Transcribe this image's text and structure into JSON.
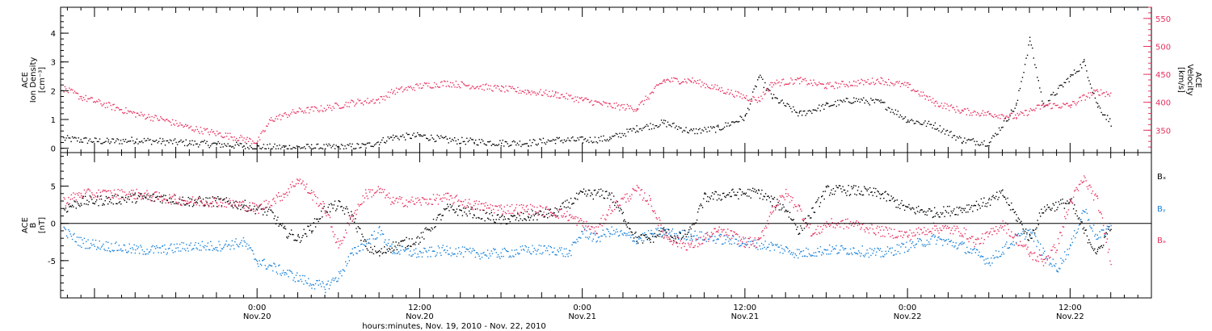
{
  "chart_data": [
    {
      "type": "scatter",
      "x_axis": {
        "label": "hours:minutes, Nov. 19, 2010 - Nov. 22, 2010",
        "range_hours": [
          -14.5,
          66
        ],
        "ticks": [
          {
            "hours": 0,
            "time": "0:00",
            "date": "Nov.20"
          },
          {
            "hours": 12,
            "time": "12:00",
            "date": "Nov.20"
          },
          {
            "hours": 24,
            "time": "0:00",
            "date": "Nov.21"
          },
          {
            "hours": 36,
            "time": "12:00",
            "date": "Nov.21"
          },
          {
            "hours": 48,
            "time": "0:00",
            "date": "Nov.22"
          },
          {
            "hours": 60,
            "time": "12:00",
            "date": "Nov.22"
          }
        ]
      },
      "left_axis": {
        "label_lines": [
          "ACE",
          "Ion Density",
          "[cm⁻³]"
        ],
        "ylim": [
          -0.15,
          4.9
        ],
        "ticks": [
          0,
          1,
          2,
          3,
          4
        ],
        "color": "#000000"
      },
      "right_axis": {
        "label_lines": [
          "ACE",
          "Velocity",
          "[km/s]"
        ],
        "ylim": [
          310,
          570
        ],
        "ticks": [
          350,
          400,
          450,
          500,
          550
        ],
        "color": "#e8305f"
      },
      "series": [
        {
          "axis": "left",
          "color": "#000000",
          "points": [
            [
              -14.3,
              0.35
            ],
            [
              -13,
              0.3
            ],
            [
              -11,
              0.25
            ],
            [
              -9,
              0.3
            ],
            [
              -7,
              0.25
            ],
            [
              -5,
              0.2
            ],
            [
              -3,
              0.15
            ],
            [
              -1,
              0.1
            ],
            [
              0,
              0.05
            ],
            [
              2,
              0.05
            ],
            [
              4,
              0.05
            ],
            [
              6,
              0.05
            ],
            [
              8,
              0.1
            ],
            [
              10,
              0.4
            ],
            [
              12,
              0.45
            ],
            [
              14,
              0.3
            ],
            [
              16,
              0.25
            ],
            [
              18,
              0.2
            ],
            [
              20,
              0.2
            ],
            [
              22,
              0.3
            ],
            [
              24,
              0.3
            ],
            [
              26,
              0.35
            ],
            [
              28,
              0.7
            ],
            [
              30,
              0.9
            ],
            [
              32,
              0.6
            ],
            [
              34,
              0.7
            ],
            [
              36,
              1.1
            ],
            [
              37,
              2.5
            ],
            [
              38,
              1.8
            ],
            [
              40,
              1.2
            ],
            [
              42,
              1.5
            ],
            [
              44,
              1.7
            ],
            [
              46,
              1.6
            ],
            [
              48,
              1.0
            ],
            [
              50,
              0.8
            ],
            [
              52,
              0.3
            ],
            [
              54,
              0.2
            ],
            [
              56,
              1.5
            ],
            [
              57,
              3.8
            ],
            [
              58,
              1.5
            ],
            [
              60,
              2.5
            ],
            [
              61,
              3.0
            ],
            [
              62,
              1.5
            ],
            [
              63,
              0.9
            ]
          ]
        },
        {
          "axis": "right",
          "color": "#e8305f",
          "points": [
            [
              -14.3,
              425
            ],
            [
              -13,
              410
            ],
            [
              -11,
              395
            ],
            [
              -9,
              380
            ],
            [
              -7,
              370
            ],
            [
              -5,
              355
            ],
            [
              -3,
              345
            ],
            [
              -1,
              335
            ],
            [
              0,
              330
            ],
            [
              1,
              370
            ],
            [
              3,
              385
            ],
            [
              5,
              390
            ],
            [
              7,
              400
            ],
            [
              9,
              405
            ],
            [
              10,
              420
            ],
            [
              12,
              430
            ],
            [
              14,
              435
            ],
            [
              16,
              430
            ],
            [
              18,
              425
            ],
            [
              20,
              420
            ],
            [
              22,
              415
            ],
            [
              24,
              405
            ],
            [
              26,
              395
            ],
            [
              28,
              390
            ],
            [
              30,
              440
            ],
            [
              32,
              440
            ],
            [
              34,
              425
            ],
            [
              36,
              410
            ],
            [
              37,
              405
            ],
            [
              38,
              435
            ],
            [
              40,
              440
            ],
            [
              42,
              430
            ],
            [
              44,
              435
            ],
            [
              46,
              440
            ],
            [
              48,
              430
            ],
            [
              50,
              400
            ],
            [
              52,
              385
            ],
            [
              54,
              380
            ],
            [
              56,
              375
            ],
            [
              58,
              395
            ],
            [
              60,
              395
            ],
            [
              61,
              410
            ],
            [
              62,
              420
            ],
            [
              63,
              415
            ]
          ]
        }
      ]
    },
    {
      "type": "scatter",
      "y_axis": {
        "label_lines": [
          "ACE",
          "B",
          "[nT]"
        ],
        "ylim": [
          -10,
          9.5
        ],
        "ticks": [
          -5,
          0,
          5
        ],
        "zero_line": true
      },
      "legend": [
        "Bₓ",
        "Bᵧ",
        "Bₔ"
      ],
      "series": [
        {
          "name": "Bx",
          "color": "#000000",
          "points": [
            [
              -14.3,
              2
            ],
            [
              -13,
              3
            ],
            [
              -11,
              3.2
            ],
            [
              -9,
              3.5
            ],
            [
              -7,
              3.5
            ],
            [
              -5,
              3.0
            ],
            [
              -3,
              3.0
            ],
            [
              -1,
              2.5
            ],
            [
              1,
              1.5
            ],
            [
              2,
              -1
            ],
            [
              3,
              -2
            ],
            [
              4,
              -0.5
            ],
            [
              5,
              2
            ],
            [
              6,
              2.5
            ],
            [
              7,
              1
            ],
            [
              8,
              -3
            ],
            [
              9,
              -4
            ],
            [
              10,
              -3
            ],
            [
              12,
              -2
            ],
            [
              14,
              2
            ],
            [
              16,
              1.5
            ],
            [
              18,
              0.5
            ],
            [
              20,
              1.0
            ],
            [
              22,
              1.5
            ],
            [
              24,
              4.0
            ],
            [
              26,
              4.0
            ],
            [
              27,
              1
            ],
            [
              28,
              -2
            ],
            [
              29,
              -2
            ],
            [
              30,
              -1
            ],
            [
              31,
              -2
            ],
            [
              32,
              -1
            ],
            [
              33,
              3.5
            ],
            [
              35,
              4.0
            ],
            [
              37,
              4.2
            ],
            [
              38,
              3
            ],
            [
              39,
              2
            ],
            [
              40,
              -1
            ],
            [
              42,
              4.5
            ],
            [
              44,
              4.5
            ],
            [
              46,
              4.0
            ],
            [
              48,
              2.0
            ],
            [
              50,
              1.5
            ],
            [
              52,
              2.0
            ],
            [
              54,
              3.0
            ],
            [
              55,
              4.0
            ],
            [
              56,
              1
            ],
            [
              57,
              -2
            ],
            [
              58,
              2
            ],
            [
              60,
              3
            ],
            [
              61,
              -1
            ],
            [
              62,
              -4
            ],
            [
              63,
              0
            ]
          ]
        },
        {
          "name": "By",
          "color": "#1a82d8",
          "points": [
            [
              -14.3,
              -1
            ],
            [
              -13,
              -2.5
            ],
            [
              -11,
              -3
            ],
            [
              -9,
              -3.5
            ],
            [
              -7,
              -3.5
            ],
            [
              -5,
              -3.0
            ],
            [
              -3,
              -3.0
            ],
            [
              -1,
              -2.5
            ],
            [
              0,
              -5
            ],
            [
              2,
              -6.5
            ],
            [
              4,
              -8
            ],
            [
              5,
              -8.5
            ],
            [
              6,
              -7
            ],
            [
              7,
              -4
            ],
            [
              9,
              -1
            ],
            [
              10,
              -3.5
            ],
            [
              12,
              -4
            ],
            [
              14,
              -3.5
            ],
            [
              16,
              -4
            ],
            [
              18,
              -4
            ],
            [
              20,
              -3.5
            ],
            [
              22,
              -3.5
            ],
            [
              23,
              -4
            ],
            [
              24,
              -1
            ],
            [
              25,
              -2
            ],
            [
              26,
              -1
            ],
            [
              28,
              -2
            ],
            [
              30,
              -1
            ],
            [
              31,
              -1.5
            ],
            [
              32,
              -1.5
            ],
            [
              34,
              -2
            ],
            [
              36,
              -2.5
            ],
            [
              38,
              -3
            ],
            [
              40,
              -4
            ],
            [
              42,
              -3.5
            ],
            [
              44,
              -3.5
            ],
            [
              46,
              -4
            ],
            [
              48,
              -3
            ],
            [
              50,
              -2
            ],
            [
              52,
              -3
            ],
            [
              54,
              -5
            ],
            [
              55,
              -3.5
            ],
            [
              56,
              -2
            ],
            [
              57,
              -1
            ],
            [
              58,
              -4
            ],
            [
              59,
              -6
            ],
            [
              60,
              -3
            ],
            [
              61,
              2
            ],
            [
              62,
              -2
            ],
            [
              63,
              0
            ]
          ]
        },
        {
          "name": "Bz",
          "color": "#e8305f",
          "points": [
            [
              -14.3,
              3
            ],
            [
              -13,
              4
            ],
            [
              -11,
              4
            ],
            [
              -9,
              4
            ],
            [
              -7,
              3.5
            ],
            [
              -5,
              3
            ],
            [
              -3,
              3
            ],
            [
              -1,
              2.5
            ],
            [
              0,
              2
            ],
            [
              2,
              4
            ],
            [
              3,
              6
            ],
            [
              4,
              4
            ],
            [
              5,
              2
            ],
            [
              6,
              -3
            ],
            [
              7,
              1
            ],
            [
              8,
              4
            ],
            [
              9,
              4.5
            ],
            [
              10,
              3
            ],
            [
              12,
              3
            ],
            [
              14,
              3.5
            ],
            [
              16,
              2.5
            ],
            [
              18,
              2
            ],
            [
              20,
              2
            ],
            [
              22,
              1.5
            ],
            [
              23,
              1
            ],
            [
              24,
              0
            ],
            [
              25,
              -1
            ],
            [
              26,
              2
            ],
            [
              28,
              4.5
            ],
            [
              29,
              3
            ],
            [
              30,
              -1.5
            ],
            [
              31,
              -2.5
            ],
            [
              32,
              -3
            ],
            [
              33,
              -2
            ],
            [
              34,
              -1
            ],
            [
              35,
              -1.5
            ],
            [
              36,
              -2.5
            ],
            [
              37,
              -2.5
            ],
            [
              38,
              2
            ],
            [
              39,
              4
            ],
            [
              40,
              2
            ],
            [
              41,
              -1.5
            ],
            [
              42,
              0
            ],
            [
              44,
              0
            ],
            [
              46,
              -1
            ],
            [
              48,
              -1.5
            ],
            [
              50,
              -0.5
            ],
            [
              52,
              -1
            ],
            [
              53,
              -2.5
            ],
            [
              54,
              -1.5
            ],
            [
              55,
              0
            ],
            [
              56,
              -2
            ],
            [
              57,
              -4
            ],
            [
              58,
              -5
            ],
            [
              59,
              -3
            ],
            [
              60,
              3
            ],
            [
              61,
              6
            ],
            [
              62,
              3
            ],
            [
              63,
              -5
            ]
          ]
        }
      ]
    }
  ]
}
